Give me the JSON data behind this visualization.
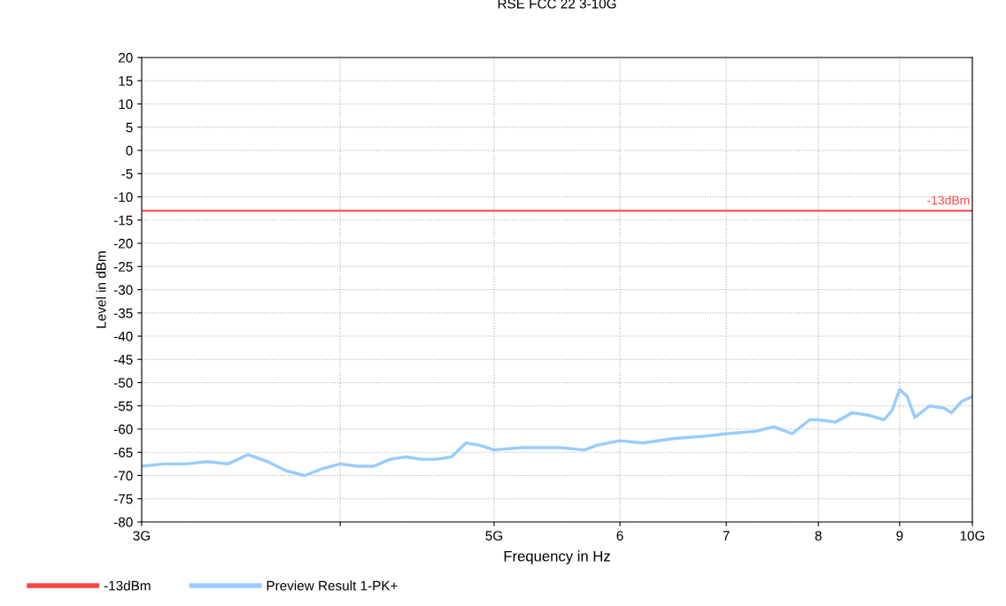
{
  "chart_data": {
    "type": "line",
    "title": "RSE FCC 22 3-10G",
    "xlabel": "Frequency in Hz",
    "ylabel": "Level in dBm",
    "log": "x",
    "x": [
      3.0,
      3.1,
      3.2,
      3.3,
      3.4,
      3.5,
      3.6,
      3.7,
      3.8,
      3.9,
      4.0,
      4.1,
      4.2,
      4.3,
      4.4,
      4.5,
      4.6,
      4.7,
      4.8,
      4.9,
      5.0,
      5.2,
      5.4,
      5.5,
      5.7,
      5.8,
      6.0,
      6.2,
      6.5,
      6.8,
      7.0,
      7.3,
      7.5,
      7.7,
      7.9,
      8.0,
      8.2,
      8.4,
      8.6,
      8.8,
      8.9,
      9.0,
      9.1,
      9.2,
      9.4,
      9.6,
      9.7,
      9.85,
      10.0
    ],
    "series": [
      {
        "name": "Preview Result 1-PK+",
        "color": "#99ccff",
        "values": [
          -68,
          -67.5,
          -67.5,
          -67,
          -67.5,
          -65.5,
          -67,
          -69,
          -70,
          -68.5,
          -67.5,
          -68,
          -68,
          -66.5,
          -66,
          -66.5,
          -66.5,
          -66,
          -63,
          -63.5,
          -64.5,
          -64,
          -64,
          -64,
          -64.5,
          -63.5,
          -62.5,
          -63,
          -62,
          -61.5,
          -61,
          -60.5,
          -59.5,
          -61,
          -58,
          -58,
          -58.5,
          -56.5,
          -57,
          -58,
          -56,
          -51.5,
          -53,
          -57.5,
          -55,
          -55.5,
          -56.5,
          -54,
          -53
        ]
      }
    ],
    "xlim": [
      3.0,
      10.0
    ],
    "ylim": [
      -80,
      20
    ],
    "xticks": [
      {
        "value": 3.0,
        "label": "3G"
      },
      {
        "value": 4.0,
        "label": null
      },
      {
        "value": 5.0,
        "label": "5G"
      },
      6,
      7,
      8,
      9,
      {
        "value": 10.0,
        "label": "10G"
      }
    ],
    "yticks": [
      -80,
      -75,
      -70,
      -65,
      -60,
      -55,
      -50,
      -45,
      -40,
      -35,
      -30,
      -25,
      -20,
      -15,
      -10,
      -5,
      0,
      5,
      10,
      15,
      20
    ],
    "ref_lines": [
      {
        "axis": "y",
        "value": -13,
        "label": "-13dBm",
        "color": "#ff4444"
      }
    ],
    "grid": true,
    "legend": "bottom",
    "line_style": "solid",
    "marker": "none"
  }
}
